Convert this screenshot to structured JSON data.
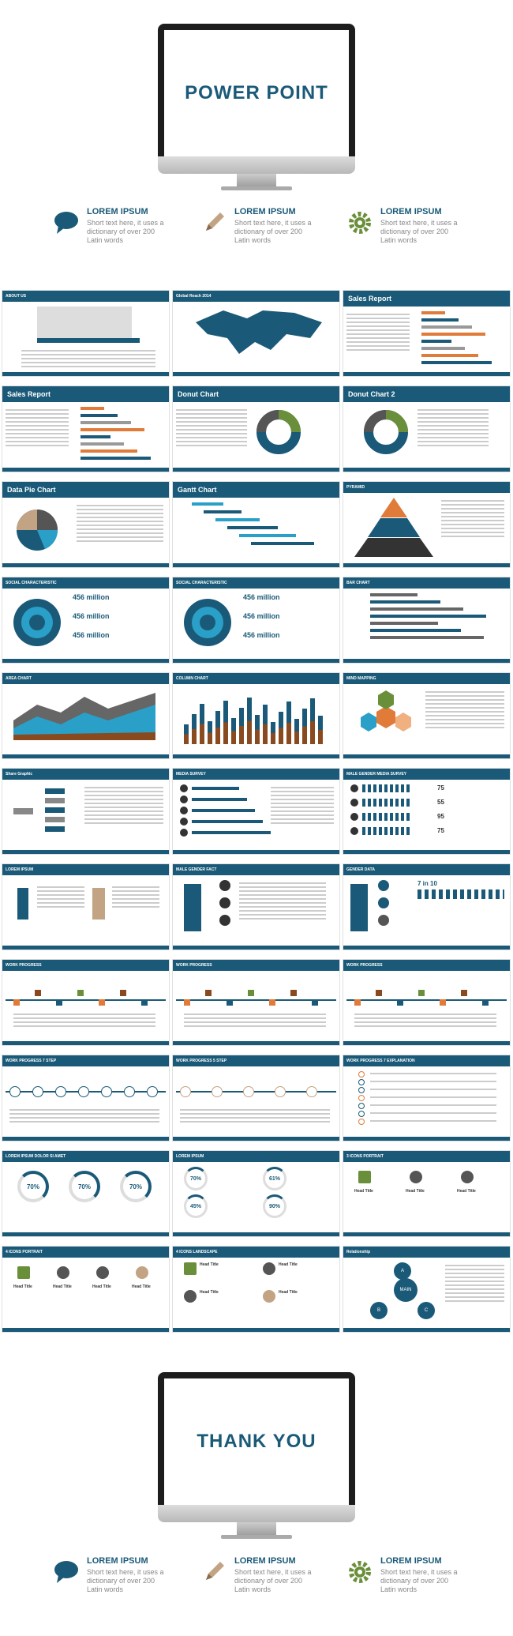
{
  "hero": {
    "title": "POWER POINT"
  },
  "closing": {
    "title": "THANK  YOU"
  },
  "features": [
    {
      "icon": "speech-bubble-icon",
      "title": "LOREM IPSUM",
      "desc": "Short text here, it uses a dictionary of over 200 Latin words"
    },
    {
      "icon": "pencil-icon",
      "title": "LOREM IPSUM",
      "desc": "Short text here, it uses a dictionary of over 200 Latin words"
    },
    {
      "icon": "gear-icon",
      "title": "LOREM IPSUM",
      "desc": "Short text here, it uses a dictionary of over 200 Latin words"
    }
  ],
  "colors": {
    "primary": "#1a5a78",
    "accent": "#e07b39",
    "green": "#6a8f3a",
    "tan": "#c2a383"
  },
  "slides": [
    {
      "title": "ABOUT US",
      "big": false
    },
    {
      "title": "Global Reach 2014",
      "big": false
    },
    {
      "title": "Sales Report",
      "big": true
    },
    {
      "title": "Sales Report",
      "big": true
    },
    {
      "title": "Donut Chart",
      "big": true
    },
    {
      "title": "Donut Chart 2",
      "big": true
    },
    {
      "title": "Data Pie Chart",
      "big": true
    },
    {
      "title": "Gantt Chart",
      "big": true
    },
    {
      "title": "PYRAMID",
      "big": false
    },
    {
      "title": "SOCIAL CHARACTERISTIC",
      "big": false
    },
    {
      "title": "SOCIAL CHARACTERISTIC",
      "big": false
    },
    {
      "title": "BAR CHART",
      "big": false
    },
    {
      "title": "AREA CHART",
      "big": false
    },
    {
      "title": "COLUMN CHART",
      "big": false
    },
    {
      "title": "MIND MAPPING",
      "big": false
    },
    {
      "title": "Share Graphic",
      "big": false
    },
    {
      "title": "MEDIA SURVEY",
      "big": false
    },
    {
      "title": "MALE GENDER MEDIA SURVEY",
      "big": false
    },
    {
      "title": "LOREM IPSUM",
      "big": false
    },
    {
      "title": "MALE GENDER FACT",
      "big": false
    },
    {
      "title": "GENDER DATA",
      "big": false
    },
    {
      "title": "WORK PROGRESS",
      "big": false
    },
    {
      "title": "WORK PROGRESS",
      "big": false
    },
    {
      "title": "WORK PROGRESS",
      "big": false
    },
    {
      "title": "WORK PROGRESS 7 STEP",
      "big": false
    },
    {
      "title": "WORK PROGRESS 5 STEP",
      "big": false
    },
    {
      "title": "WORK PROGRESS 7 EXPLANATION",
      "big": false
    },
    {
      "title": "LOREM IPSUM DOLOR SI AMET",
      "big": false
    },
    {
      "title": "LOREM IPSUM",
      "big": false
    },
    {
      "title": "3 ICONS PORTRAIT",
      "big": false
    },
    {
      "title": "4 ICONS PORTRAIT",
      "big": false
    },
    {
      "title": "4 ICONS LANDSCAPE",
      "big": false
    },
    {
      "title": "Relationship",
      "big": false
    }
  ],
  "stats": {
    "million": "456 million",
    "pcts": [
      "70%",
      "70%",
      "70%"
    ],
    "pcts2": [
      "70%",
      "61%",
      "45%",
      "90%"
    ],
    "survey": [
      "75",
      "55",
      "95",
      "75"
    ],
    "ratio": "7 in 10",
    "main": "MAIN",
    "head_title": "Head Title",
    "abc": [
      "A",
      "B",
      "C"
    ]
  }
}
